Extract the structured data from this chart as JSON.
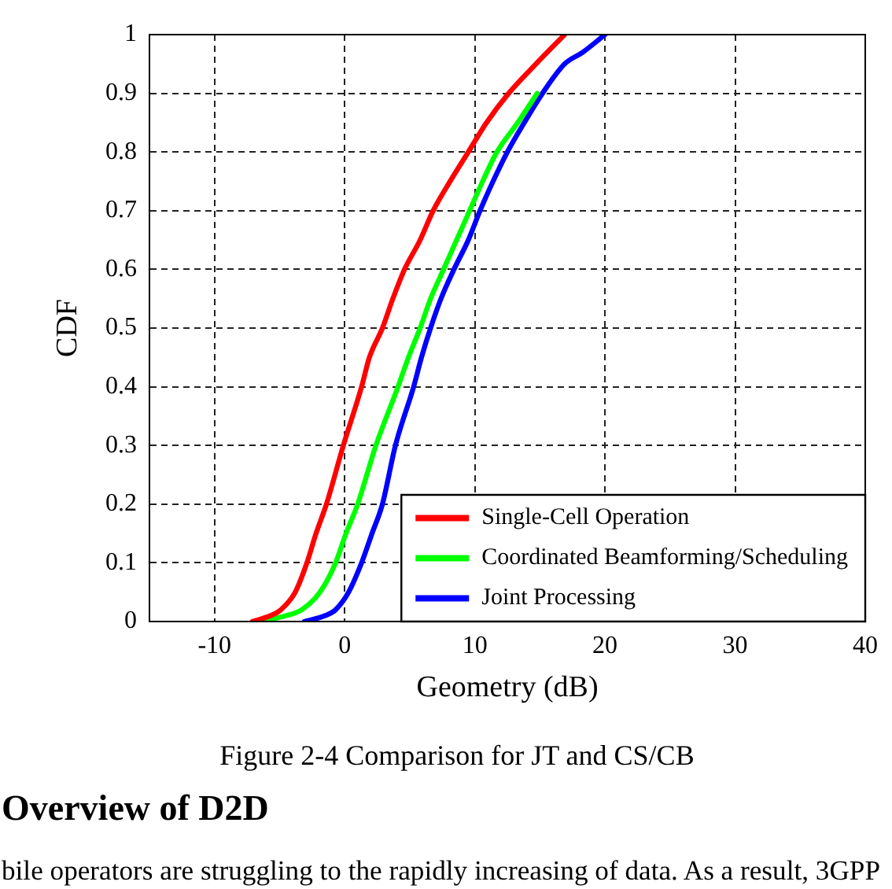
{
  "chart_data": {
    "type": "line",
    "xlabel": "Geometry (dB)",
    "ylabel": "CDF",
    "xlim": [
      -15,
      40
    ],
    "xticks": [
      -10,
      0,
      10,
      20,
      30,
      40
    ],
    "ylim": [
      0,
      1
    ],
    "yticks": [
      0,
      0.1,
      0.2,
      0.3,
      0.4,
      0.5,
      0.6,
      0.7,
      0.8,
      0.9,
      1
    ],
    "grid": true,
    "legend": "bottom right",
    "line_style": "solid",
    "series": [
      {
        "name": "Single-Cell Operation",
        "color": "#ff0000",
        "x": [
          -7.1,
          -5.7,
          -4.9,
          -3.8,
          -2.9,
          -2.2,
          -1.4,
          -0.1,
          1.3,
          1.9,
          2.9,
          3.7,
          4.6,
          5.8,
          6.8,
          8.1,
          9.5,
          10.9,
          12.6,
          14.7,
          16.9
        ],
        "values": [
          0,
          0.01,
          0.02,
          0.05,
          0.1,
          0.15,
          0.2,
          0.3,
          0.4,
          0.45,
          0.5,
          0.55,
          0.6,
          0.65,
          0.7,
          0.75,
          0.8,
          0.85,
          0.9,
          0.95,
          1
        ]
      },
      {
        "name": "Coordinated Beamforming/Scheduling",
        "color": "#00ff00",
        "x": [
          -6.5,
          -4.5,
          -3.3,
          -1.9,
          -0.7,
          0.1,
          1.0,
          2.4,
          4.1,
          4.9,
          5.8,
          6.6,
          7.6,
          8.6,
          9.6,
          10.6,
          11.7,
          13.3,
          14.8
        ],
        "values": [
          0,
          0.01,
          0.02,
          0.05,
          0.1,
          0.15,
          0.2,
          0.3,
          0.4,
          0.45,
          0.5,
          0.55,
          0.6,
          0.65,
          0.7,
          0.75,
          0.8,
          0.85,
          0.9
        ]
      },
      {
        "name": "Joint Processing",
        "color": "#0000ff",
        "x": [
          -3.1,
          -1.5,
          -0.7,
          0.3,
          1.3,
          2.1,
          2.9,
          3.9,
          5.3,
          5.9,
          6.6,
          7.4,
          8.4,
          9.5,
          10.4,
          11.4,
          12.5,
          13.8,
          15.2,
          16.9,
          18.3,
          20.0
        ],
        "values": [
          0,
          0.01,
          0.02,
          0.05,
          0.1,
          0.15,
          0.2,
          0.3,
          0.4,
          0.45,
          0.5,
          0.55,
          0.6,
          0.65,
          0.7,
          0.75,
          0.8,
          0.85,
          0.9,
          0.95,
          0.97,
          1
        ]
      }
    ],
    "annotations": [
      "Figure 2-4 Comparison for JT and CS/CB",
      "Overview of D2D",
      "bile operators are struggling to the rapidly increasing of data. As a result, 3GPP"
    ]
  }
}
